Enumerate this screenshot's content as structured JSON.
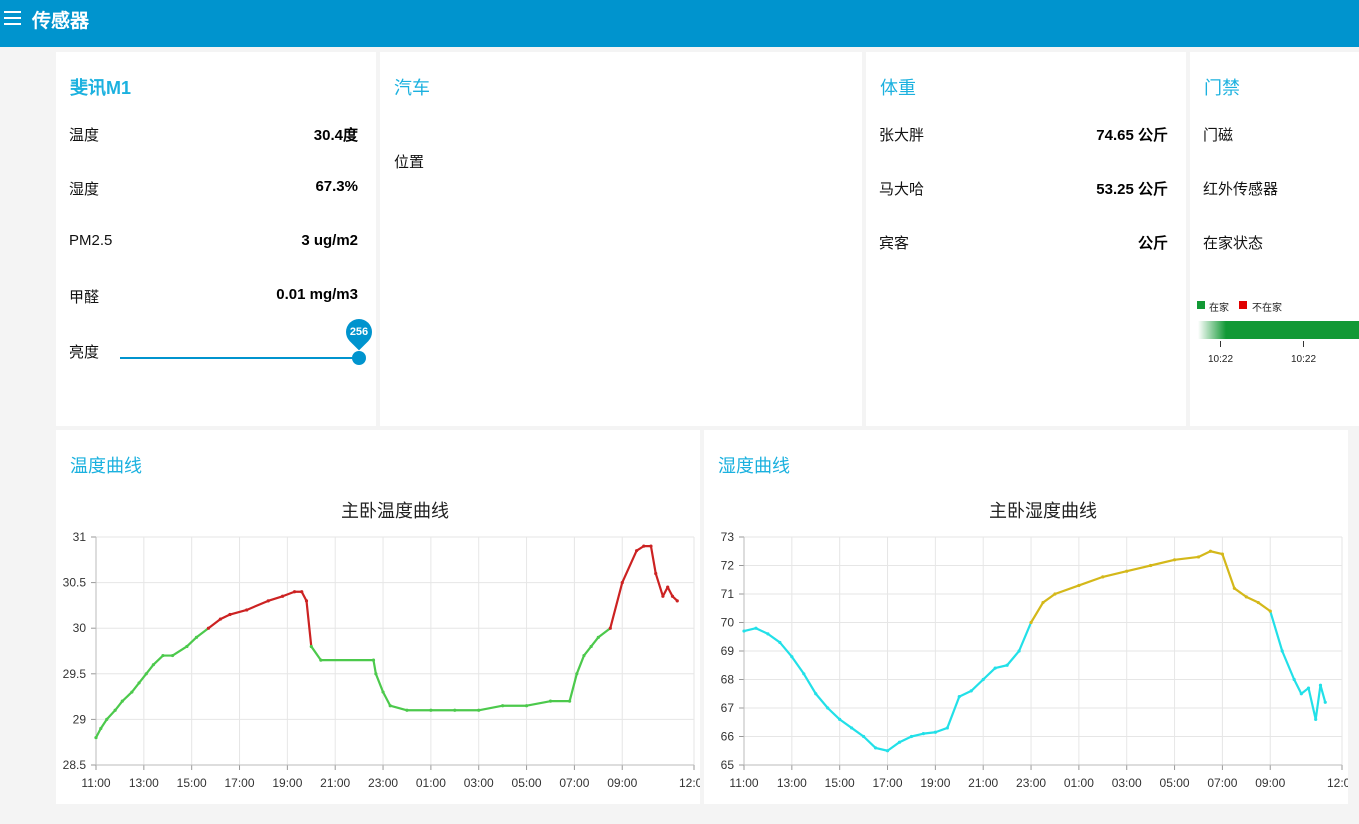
{
  "header": {
    "title": "传感器",
    "menu_icon": "hamburger-menu-icon"
  },
  "feixun": {
    "title": "斐讯M1",
    "rows": [
      {
        "label": "温度",
        "value": "30.4度"
      },
      {
        "label": "湿度",
        "value": "67.3%"
      },
      {
        "label": "PM2.5",
        "value": "3 ug/m2"
      },
      {
        "label": "甲醛",
        "value": "0.01 mg/m3"
      }
    ],
    "brightness": {
      "label": "亮度",
      "value": "256",
      "level": 1.0
    }
  },
  "car": {
    "title": "汽车",
    "position_label": "位置"
  },
  "weight": {
    "title": "体重",
    "rows": [
      {
        "label": "张大胖",
        "value": "74.65 公斤"
      },
      {
        "label": "马大哈",
        "value": "53.25 公斤"
      },
      {
        "label": "宾客",
        "value": "公斤"
      }
    ]
  },
  "access": {
    "title": "门禁",
    "rows": [
      {
        "label": "门磁"
      },
      {
        "label": "红外传感器"
      },
      {
        "label": "在家状态"
      }
    ],
    "legend": [
      {
        "label": "在家",
        "color": "#129935"
      },
      {
        "label": "不在家",
        "color": "#e00000"
      }
    ],
    "ticks": [
      "10:22",
      "10:22"
    ]
  },
  "temp_card": {
    "title": "温度曲线"
  },
  "hum_card": {
    "title": "湿度曲线"
  },
  "chart_data": [
    {
      "type": "line",
      "title": "主卧温度曲线",
      "xlabel": "",
      "ylabel": "",
      "x_ticks": [
        "11:00",
        "13:00",
        "15:00",
        "17:00",
        "19:00",
        "21:00",
        "23:00",
        "01:00",
        "03:00",
        "05:00",
        "07:00",
        "09:00",
        "12:00"
      ],
      "x_hours": [
        0,
        2,
        4,
        6,
        8,
        10,
        12,
        14,
        16,
        18,
        20,
        22,
        25
      ],
      "xlim_hours": [
        0,
        25
      ],
      "ylim": [
        28.5,
        31
      ],
      "y_ticks": [
        28.5,
        29,
        29.5,
        30,
        30.5,
        31
      ],
      "grid": true,
      "threshold": 30,
      "color_below": "#4cc94c",
      "color_above": "#cc2222",
      "series": [
        {
          "x": [
            0,
            0.2,
            0.45,
            0.8,
            1.1,
            1.5,
            1.8,
            2.1,
            2.4,
            2.8,
            3.2,
            3.8,
            4.2,
            4.7,
            5.2,
            5.6,
            6.3,
            7.2,
            7.8,
            8.3,
            8.6,
            8.8,
            9.0,
            9.4,
            11.6,
            11.7,
            12.0,
            12.3,
            13.0,
            14.0,
            15.0,
            16.0,
            17.0,
            18.0,
            19.0,
            19.8,
            20.1,
            20.4,
            20.7,
            21.0,
            21.5,
            22.0,
            22.6,
            22.9,
            23.2,
            23.4,
            23.7,
            23.9,
            24.1,
            24.3
          ],
          "y": [
            28.8,
            28.9,
            29.0,
            29.1,
            29.2,
            29.3,
            29.4,
            29.5,
            29.6,
            29.7,
            29.7,
            29.8,
            29.9,
            30.0,
            30.1,
            30.15,
            30.2,
            30.3,
            30.35,
            30.4,
            30.4,
            30.3,
            29.8,
            29.65,
            29.65,
            29.5,
            29.3,
            29.15,
            29.1,
            29.1,
            29.1,
            29.1,
            29.15,
            29.15,
            29.2,
            29.2,
            29.5,
            29.7,
            29.8,
            29.9,
            30.0,
            30.5,
            30.85,
            30.9,
            30.9,
            30.6,
            30.35,
            30.45,
            30.35,
            30.3
          ]
        }
      ]
    },
    {
      "type": "line",
      "title": "主卧湿度曲线",
      "xlabel": "",
      "ylabel": "",
      "x_ticks": [
        "11:00",
        "13:00",
        "15:00",
        "17:00",
        "19:00",
        "21:00",
        "23:00",
        "01:00",
        "03:00",
        "05:00",
        "07:00",
        "09:00",
        "12:00"
      ],
      "x_hours": [
        0,
        2,
        4,
        6,
        8,
        10,
        12,
        14,
        16,
        18,
        20,
        22,
        25
      ],
      "xlim_hours": [
        0,
        25
      ],
      "ylim": [
        65,
        73
      ],
      "y_ticks": [
        65,
        66,
        67,
        68,
        69,
        70,
        71,
        72,
        73
      ],
      "grid": true,
      "threshold": 70,
      "color_below": "#22e0e8",
      "color_above": "#d4b81a",
      "series": [
        {
          "x": [
            0,
            0.5,
            1.0,
            1.5,
            2.0,
            2.5,
            3.0,
            3.5,
            4.0,
            4.5,
            5.0,
            5.5,
            6.0,
            6.5,
            7.0,
            7.5,
            8.0,
            8.5,
            9.0,
            9.5,
            10.0,
            10.5,
            11.0,
            11.5,
            12.0,
            12.5,
            13.0,
            14.0,
            15.0,
            16.0,
            17.0,
            18.0,
            19.0,
            19.5,
            20.0,
            20.5,
            21.0,
            21.5,
            22.0,
            22.5,
            23.0,
            23.3,
            23.6,
            23.9,
            24.1,
            24.3
          ],
          "y": [
            69.7,
            69.8,
            69.6,
            69.3,
            68.8,
            68.2,
            67.5,
            67.0,
            66.6,
            66.3,
            66.0,
            65.6,
            65.5,
            65.8,
            66.0,
            66.1,
            66.15,
            66.3,
            67.4,
            67.6,
            68.0,
            68.4,
            68.5,
            69.0,
            70.0,
            70.7,
            71.0,
            71.3,
            71.6,
            71.8,
            72.0,
            72.2,
            72.3,
            72.5,
            72.4,
            71.2,
            70.9,
            70.7,
            70.4,
            69.0,
            68.0,
            67.5,
            67.7,
            66.6,
            67.8,
            67.2
          ]
        }
      ]
    }
  ]
}
